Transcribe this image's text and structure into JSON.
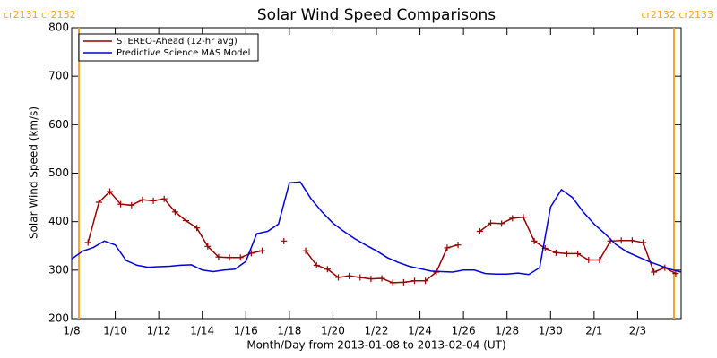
{
  "chart_data": {
    "type": "line",
    "title": "Solar Wind Speed Comparisons",
    "x_label": "Month/Day from 2013-01-08 to 2013-02-04 (UT)",
    "y_label": "Solar Wind Speed (km/s)",
    "xlim": [
      0,
      28
    ],
    "xticks": [
      {
        "value": 0,
        "label": "1/8"
      },
      {
        "value": 2,
        "label": "1/10"
      },
      {
        "value": 4,
        "label": "1/12"
      },
      {
        "value": 6,
        "label": "1/14"
      },
      {
        "value": 8,
        "label": "1/16"
      },
      {
        "value": 10,
        "label": "1/18"
      },
      {
        "value": 12,
        "label": "1/20"
      },
      {
        "value": 14,
        "label": "1/22"
      },
      {
        "value": 16,
        "label": "1/24"
      },
      {
        "value": 18,
        "label": "1/26"
      },
      {
        "value": 20,
        "label": "1/28"
      },
      {
        "value": 22,
        "label": "1/30"
      },
      {
        "value": 24,
        "label": "2/1"
      },
      {
        "value": 26,
        "label": "2/3"
      }
    ],
    "ylim": [
      200,
      800
    ],
    "yticks": [
      200,
      300,
      400,
      500,
      600,
      700,
      800
    ],
    "legend": "upper left",
    "rotation_boundaries": [
      {
        "x": 0.33,
        "label": "cr2131 cr2132",
        "color": "#f5a623"
      },
      {
        "x": 27.67,
        "label": "cr2132 cr2133",
        "color": "#f5a623"
      }
    ],
    "series": [
      {
        "name": "STEREO-Ahead (12-hr avg)",
        "color": "#990000",
        "marker": "+",
        "x": [
          0.75,
          1.25,
          1.75,
          2.25,
          2.75,
          3.25,
          3.75,
          4.25,
          4.75,
          5.25,
          5.75,
          6.25,
          6.75,
          7.25,
          7.75,
          8.25,
          8.75,
          9.25,
          9.75,
          10.25,
          10.75,
          11.25,
          11.75,
          12.25,
          12.75,
          13.25,
          13.75,
          14.25,
          14.75,
          15.25,
          15.75,
          16.25,
          16.75,
          17.25,
          17.75,
          18.25,
          18.75,
          19.25,
          19.75,
          20.25,
          20.75,
          21.25,
          21.75,
          22.25,
          22.75,
          23.25,
          23.75,
          24.25,
          24.75,
          25.25,
          25.75,
          26.25,
          26.75,
          27.25,
          27.75
        ],
        "values": [
          357,
          440,
          462,
          436,
          434,
          445,
          443,
          447,
          420,
          402,
          387,
          349,
          327,
          326,
          326,
          335,
          340,
          null,
          360,
          null,
          340,
          310,
          302,
          285,
          288,
          285,
          282,
          283,
          274,
          275,
          278,
          278,
          296,
          346,
          352,
          null,
          380,
          397,
          396,
          407,
          409,
          360,
          345,
          336,
          334,
          334,
          321,
          321,
          360,
          361,
          361,
          357,
          296,
          305,
          293
        ]
      },
      {
        "name": "Predictive Science MAS Model",
        "color": "#0000dd",
        "x": [
          0,
          0.5,
          1,
          1.5,
          2,
          2.5,
          3,
          3.5,
          4,
          4.5,
          5,
          5.5,
          6,
          6.5,
          7,
          7.5,
          8,
          8.5,
          9,
          9.5,
          10,
          10.5,
          11,
          11.5,
          12,
          12.5,
          13,
          13.5,
          14,
          14.5,
          15,
          15.5,
          16,
          16.5,
          17,
          17.5,
          18,
          18.5,
          19,
          19.5,
          20,
          20.5,
          21,
          21.5,
          22,
          22.5,
          23,
          23.5,
          24,
          24.5,
          25,
          25.5,
          26,
          26.5,
          27,
          27.5,
          28
        ],
        "values": [
          323,
          339,
          347,
          360,
          352,
          320,
          310,
          306,
          307,
          308,
          310,
          311,
          300,
          297,
          300,
          302,
          318,
          375,
          380,
          395,
          480,
          482,
          447,
          420,
          397,
          380,
          365,
          352,
          340,
          326,
          316,
          308,
          303,
          298,
          297,
          296,
          300,
          300,
          293,
          292,
          292,
          294,
          291,
          305,
          430,
          466,
          450,
          420,
          395,
          375,
          353,
          338,
          328,
          318,
          310,
          302,
          296
        ]
      }
    ]
  }
}
